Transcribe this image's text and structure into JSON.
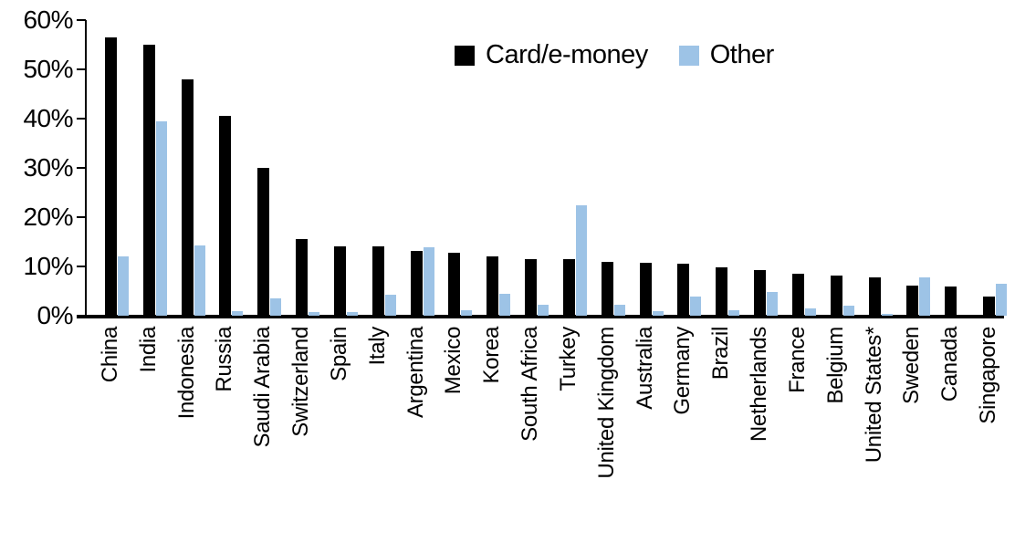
{
  "chart_data": {
    "type": "bar",
    "title": "",
    "categories": [
      "China",
      "India",
      "Indonesia",
      "Russia",
      "Saudi Arabia",
      "Switzerland",
      "Spain",
      "Italy",
      "Argentina",
      "Mexico",
      "Korea",
      "South Africa",
      "Turkey",
      "United Kingdom",
      "Australia",
      "Germany",
      "Brazil",
      "Netherlands",
      "France",
      "Belgium",
      "United States*",
      "Sweden",
      "Canada",
      "Singapore"
    ],
    "series": [
      {
        "name": "Card/e-money",
        "color": "#000000",
        "values": [
          56.5,
          55,
          48,
          40.5,
          30,
          15.5,
          14,
          14,
          13.2,
          12.7,
          12,
          11.4,
          11.4,
          11,
          10.8,
          10.5,
          9.9,
          9.2,
          8.6,
          8.2,
          7.8,
          6.2,
          5.9,
          3.9
        ]
      },
      {
        "name": "Other",
        "color": "#9DC3E6",
        "values": [
          12,
          39.5,
          14.3,
          0.9,
          3.5,
          0.7,
          0.8,
          4.3,
          13.8,
          1.1,
          4.4,
          2.2,
          22.5,
          2.3,
          1,
          3.9,
          1.1,
          4.8,
          1.5,
          2,
          0.4,
          7.7,
          0,
          6.5
        ]
      }
    ],
    "xlabel": "",
    "ylabel": "",
    "ylim": [
      0,
      60
    ],
    "ytick_step": 10,
    "ytick_labels_top_down": [
      "60%",
      "50%",
      "40%",
      "30%",
      "20%",
      "10%",
      "0%"
    ],
    "grid": false,
    "legend_position": "top-center",
    "x_label_rotation_deg": 90
  },
  "colors": {
    "card_series": "#000000",
    "other_series": "#9DC3E6",
    "axis": "#000000",
    "background": "#FFFFFF"
  }
}
